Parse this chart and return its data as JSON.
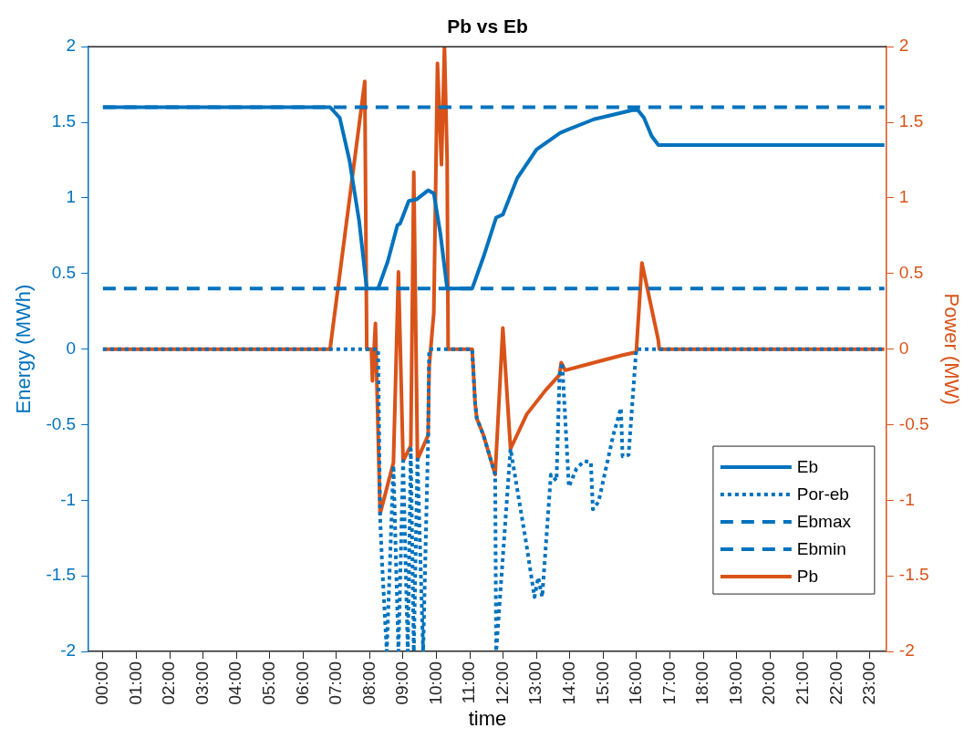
{
  "chart_data": {
    "type": "line",
    "title": "Pb vs Eb",
    "xlabel": "time",
    "ylabel": "Energy (MWh)",
    "y2label": "Power (MW)",
    "xlim": [
      -0.43,
      23.49
    ],
    "xticks": [
      {
        "value": 0,
        "label": "00:00"
      },
      {
        "value": 1,
        "label": "01:00"
      },
      {
        "value": 2,
        "label": "02:00"
      },
      {
        "value": 3,
        "label": "03:00"
      },
      {
        "value": 4,
        "label": "04:00"
      },
      {
        "value": 5,
        "label": "05:00"
      },
      {
        "value": 6,
        "label": "06:00"
      },
      {
        "value": 7,
        "label": "07:00"
      },
      {
        "value": 8,
        "label": "08:00"
      },
      {
        "value": 9,
        "label": "09:00"
      },
      {
        "value": 10,
        "label": "10:00"
      },
      {
        "value": 11,
        "label": "11:00"
      },
      {
        "value": 12,
        "label": "12:00"
      },
      {
        "value": 13,
        "label": "13:00"
      },
      {
        "value": 14,
        "label": "14:00"
      },
      {
        "value": 15,
        "label": "15:00"
      },
      {
        "value": 16,
        "label": "16:00"
      },
      {
        "value": 17,
        "label": "17:00"
      },
      {
        "value": 18,
        "label": "18:00"
      },
      {
        "value": 19,
        "label": "19:00"
      },
      {
        "value": 20,
        "label": "20:00"
      },
      {
        "value": 21,
        "label": "21:00"
      },
      {
        "value": 22,
        "label": "22:00"
      },
      {
        "value": 23,
        "label": "23:00"
      }
    ],
    "ylim": [
      -2,
      2
    ],
    "yticks": [
      -2,
      -1.5,
      -1,
      -0.5,
      0,
      0.5,
      1,
      1.5,
      2
    ],
    "y2lim": [
      -2,
      2
    ],
    "y2ticks": [
      -2,
      -1.5,
      -1,
      -0.5,
      0,
      0.5,
      1,
      1.5,
      2
    ],
    "grid": false,
    "legend": "bottom right",
    "series": [
      {
        "name": "Eb",
        "color": "#0072bd",
        "line_style": "solid",
        "x": [
          0,
          6.81,
          7.1,
          7.39,
          7.68,
          7.91,
          8.25,
          8.54,
          8.83,
          8.91,
          9.17,
          9.4,
          9.75,
          9.92,
          10.12,
          10.32,
          11.07,
          11.41,
          11.79,
          11.99,
          12.42,
          13.0,
          13.71,
          13.92,
          14.72,
          15.87,
          16.04,
          16.22,
          16.45,
          16.65,
          23.43
        ],
        "values": [
          1.6,
          1.6,
          1.53,
          1.25,
          0.85,
          0.4,
          0.4,
          0.58,
          0.82,
          0.83,
          0.98,
          0.99,
          1.05,
          1.03,
          0.76,
          0.4,
          0.4,
          0.61,
          0.87,
          0.89,
          1.13,
          1.32,
          1.43,
          1.45,
          1.52,
          1.58,
          1.58,
          1.53,
          1.41,
          1.35,
          1.35
        ]
      },
      {
        "name": "Por-eb",
        "color": "#0072bd",
        "line_style": "dotted",
        "x": [
          0,
          8.25,
          8.31,
          8.37,
          8.51,
          8.71,
          8.86,
          9.0,
          9.14,
          9.23,
          9.32,
          9.43,
          9.6,
          9.75,
          9.78,
          11.07,
          11.16,
          11.21,
          11.41,
          11.76,
          11.79,
          12.22,
          12.68,
          12.94,
          13.05,
          13.17,
          13.43,
          13.6,
          13.69,
          13.77,
          13.97,
          14.2,
          14.43,
          14.63,
          14.69,
          14.86,
          15.3,
          15.53,
          15.58,
          15.76,
          15.99,
          23.43
        ],
        "values": [
          0,
          0,
          -1.11,
          -1.42,
          -2,
          -0.77,
          -2,
          -0.74,
          -2,
          -0.66,
          -2,
          -0.73,
          -2,
          -0.6,
          0,
          0,
          -0.36,
          -0.46,
          -0.57,
          -0.83,
          -2,
          -0.66,
          -1.27,
          -1.64,
          -1.51,
          -1.64,
          -0.83,
          -0.87,
          -0.17,
          -0.09,
          -0.91,
          -0.79,
          -0.74,
          -0.75,
          -1.06,
          -1.01,
          -0.57,
          -0.39,
          -0.71,
          -0.7,
          0,
          0
        ]
      },
      {
        "name": "Ebmax",
        "color": "#0072bd",
        "line_style": "dashed",
        "x": [
          0,
          23.43
        ],
        "values": [
          1.6,
          1.6
        ]
      },
      {
        "name": "Ebmin",
        "color": "#0072bd",
        "line_style": "dashed",
        "x": [
          0,
          23.43
        ],
        "values": [
          0.4,
          0.4
        ]
      },
      {
        "name": "Pb",
        "color": "#d95319",
        "line_style": "solid",
        "axis": "y2",
        "x": [
          0,
          6.81,
          7.85,
          7.91,
          8.05,
          8.08,
          8.17,
          8.31,
          8.71,
          8.86,
          9.0,
          9.23,
          9.32,
          9.43,
          9.75,
          9.78,
          9.92,
          10.03,
          10.15,
          10.24,
          10.32,
          10.35,
          11.07,
          11.16,
          11.21,
          11.41,
          11.76,
          11.99,
          12.22,
          12.71,
          13.28,
          13.69,
          13.74,
          13.86,
          14.72,
          15.58,
          15.99,
          16.16,
          16.65,
          16.68,
          23.43
        ],
        "values": [
          0,
          0,
          1.77,
          0,
          0,
          -0.21,
          0.17,
          -1.09,
          -0.75,
          0.51,
          -0.74,
          -0.64,
          1.17,
          -0.73,
          -0.57,
          -0.12,
          0.24,
          1.89,
          1.22,
          2.0,
          1.25,
          0,
          0,
          -0.36,
          -0.46,
          -0.57,
          -0.83,
          0.14,
          -0.66,
          -0.43,
          -0.27,
          -0.17,
          -0.09,
          -0.14,
          -0.09,
          -0.04,
          -0.02,
          0.57,
          0.06,
          0,
          0
        ]
      }
    ]
  }
}
